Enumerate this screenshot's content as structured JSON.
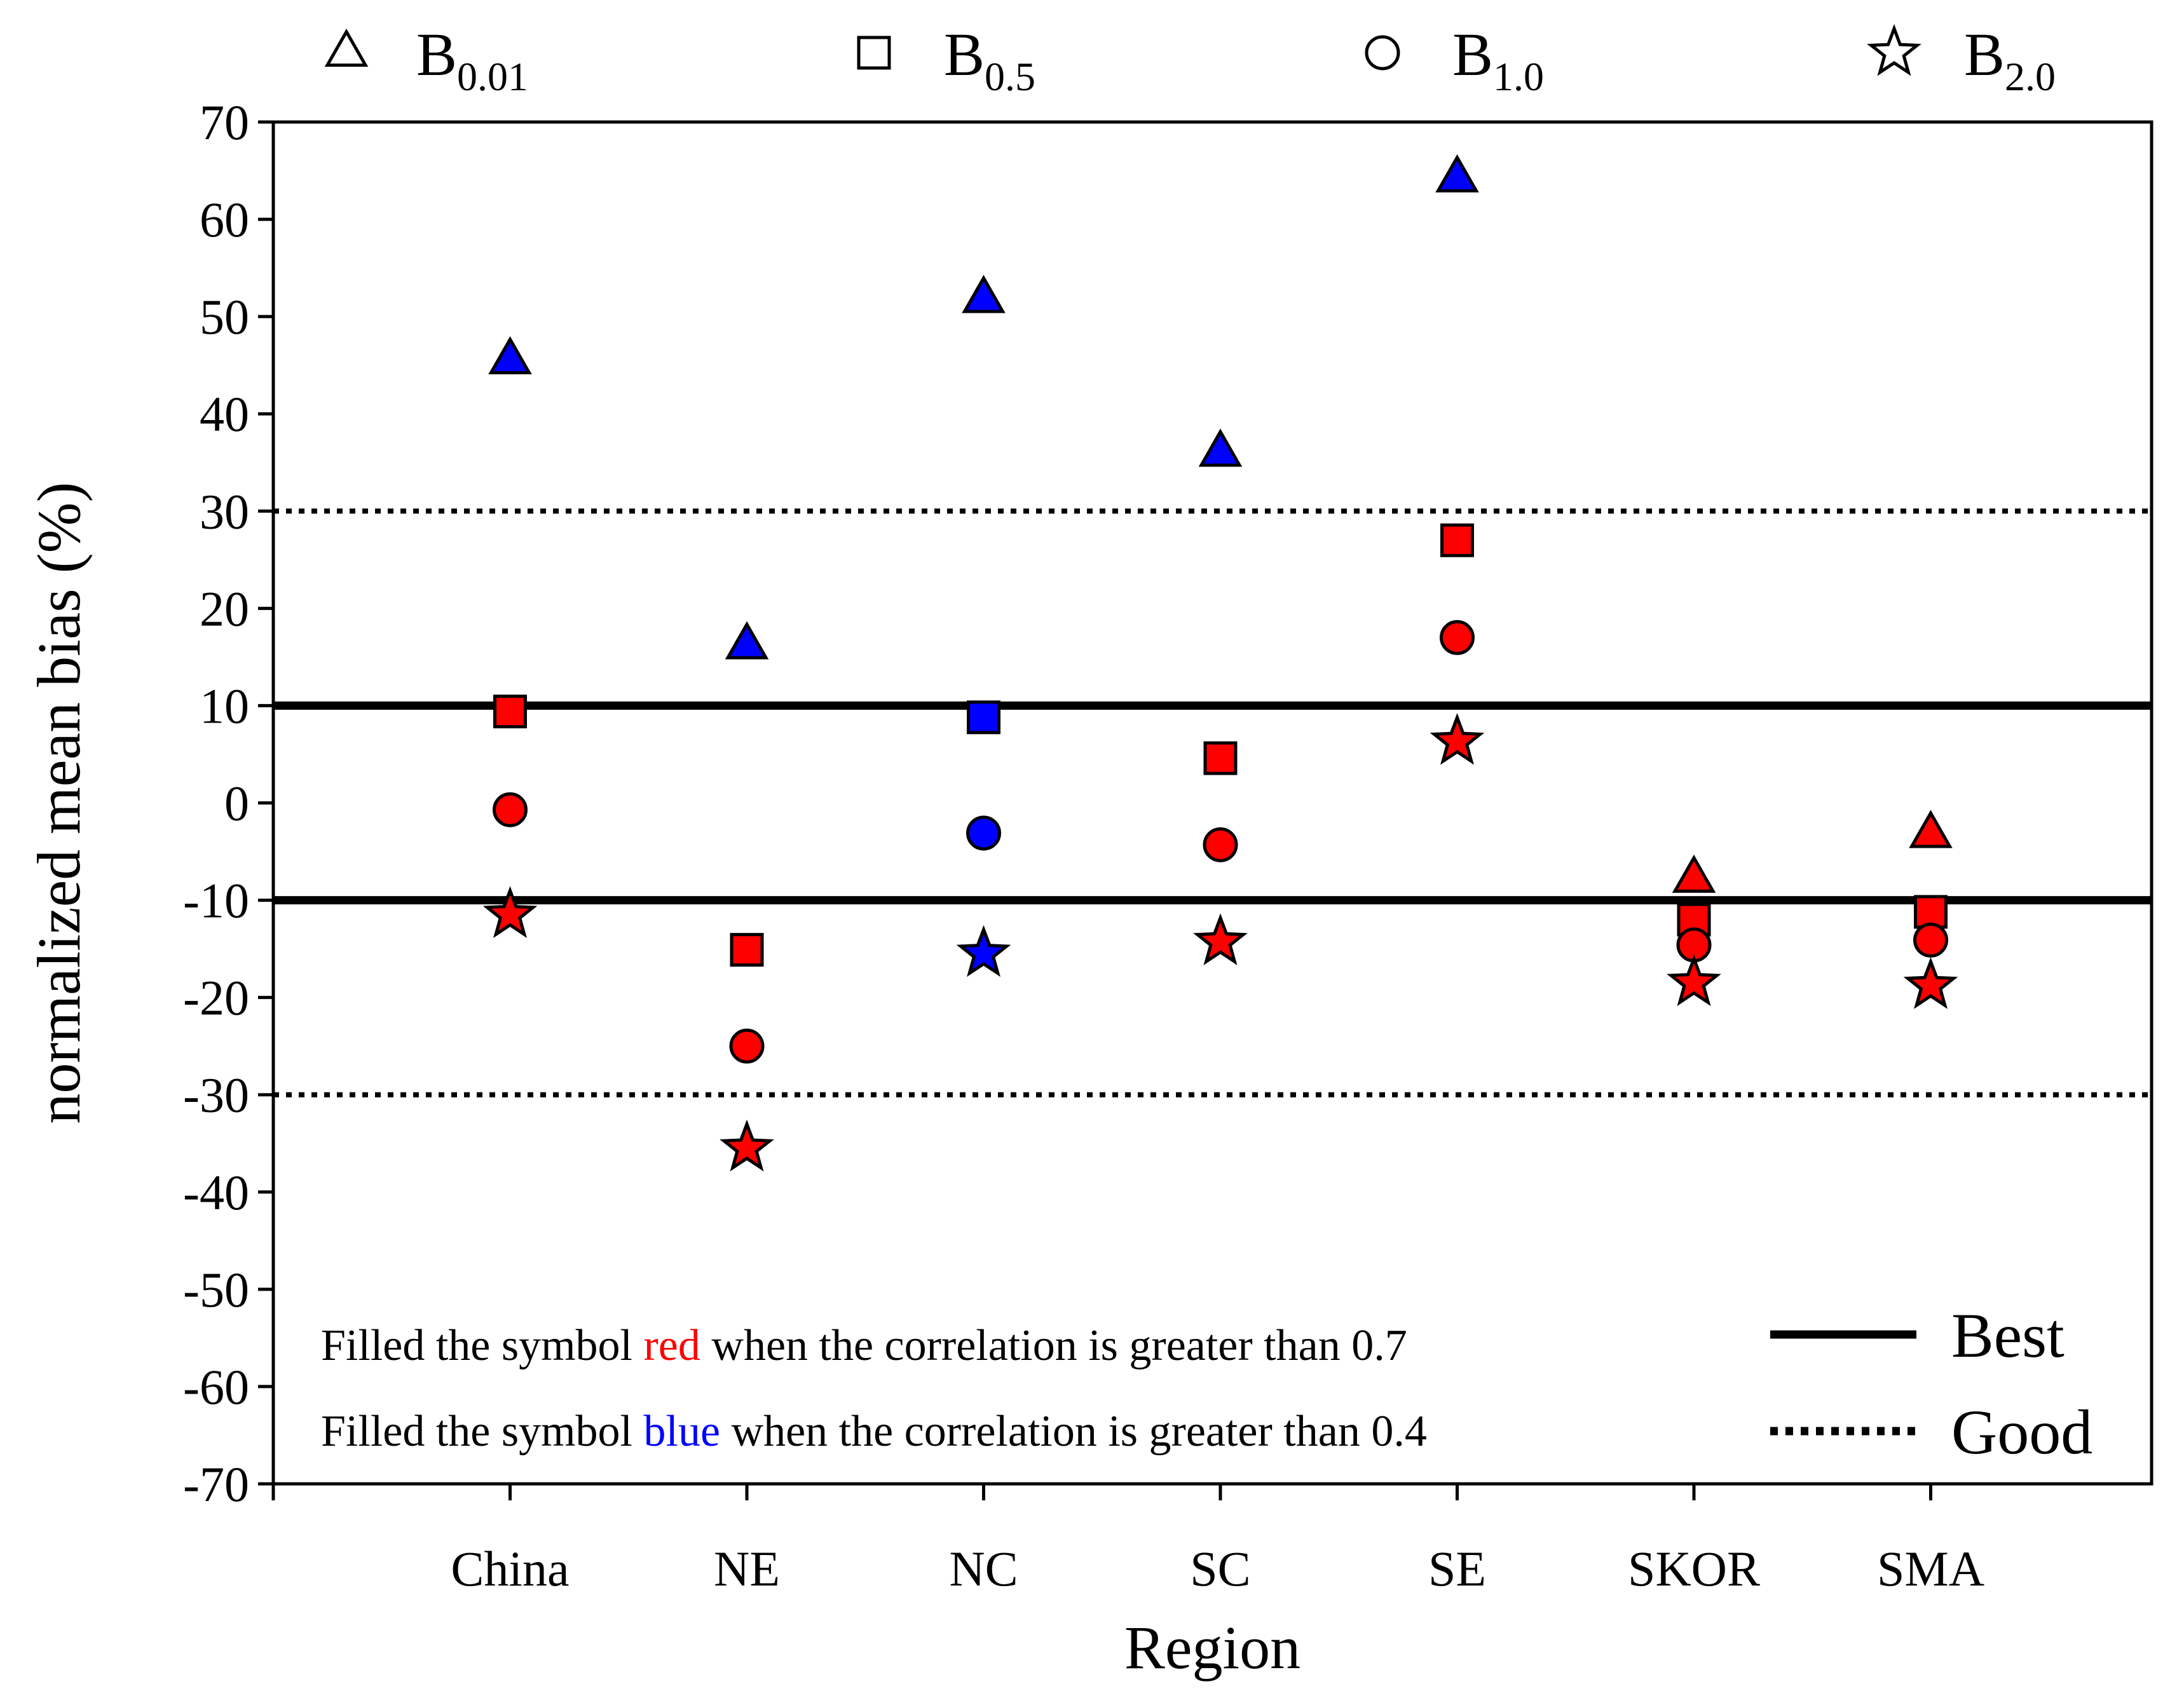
{
  "chart_data": {
    "type": "scatter",
    "xlabel": "Region",
    "ylabel": "normalized mean bias (%)",
    "categories": [
      "China",
      "NE",
      "NC",
      "SC",
      "SE",
      "SKOR",
      "SMA"
    ],
    "ylim": [
      -70,
      70
    ],
    "yticks": [
      "70",
      "60",
      "50",
      "40",
      "30",
      "20",
      "10",
      "0",
      "-10",
      "-20",
      "-30",
      "-40",
      "-50",
      "-60",
      "-70"
    ],
    "series": [
      {
        "name": "B0.01",
        "label_main": "B",
        "label_sub": "0.01",
        "marker": "triangle",
        "values": [
          45.5,
          16.2,
          51.8,
          36.0,
          64.2,
          -7.8,
          -3.2
        ],
        "fills": [
          "blue",
          "blue",
          "blue",
          "blue",
          "blue",
          "red",
          "red"
        ]
      },
      {
        "name": "B0.5",
        "label_main": "B",
        "label_sub": "0.5",
        "marker": "square",
        "values": [
          9.4,
          -15.1,
          8.8,
          4.6,
          27.0,
          -12.0,
          -11.2
        ],
        "fills": [
          "red",
          "red",
          "blue",
          "red",
          "red",
          "red",
          "red"
        ]
      },
      {
        "name": "B1.0",
        "label_main": "B",
        "label_sub": "1.0",
        "marker": "circle",
        "values": [
          -0.7,
          -25.0,
          -3.1,
          -4.3,
          17.0,
          -14.6,
          -14.1
        ],
        "fills": [
          "red",
          "red",
          "blue",
          "red",
          "red",
          "red",
          "red"
        ]
      },
      {
        "name": "B2.0",
        "label_main": "B",
        "label_sub": "2.0",
        "marker": "star",
        "values": [
          -11.5,
          -35.5,
          -15.5,
          -14.3,
          6.3,
          -18.5,
          -18.8
        ],
        "fills": [
          "red",
          "red",
          "blue",
          "red",
          "red",
          "red",
          "red"
        ]
      }
    ],
    "reference_lines": [
      {
        "y": 10,
        "style": "solid"
      },
      {
        "y": -10,
        "style": "solid"
      },
      {
        "y": 30,
        "style": "dotted"
      },
      {
        "y": -30,
        "style": "dotted"
      }
    ],
    "line_legend": [
      {
        "style": "solid",
        "label": "Best"
      },
      {
        "style": "dotted",
        "label": "Good"
      }
    ],
    "notes": [
      {
        "before": "Filled the symbol ",
        "word": "red",
        "after": " when the correlation is greater than 0.7",
        "color": "#ff0000"
      },
      {
        "before": "Filled the symbol ",
        "word": "blue",
        "after": " when the correlation is greater than 0.4",
        "color": "#0000ff"
      }
    ],
    "colors": {
      "red": "#ff0000",
      "blue": "#0000ff"
    },
    "grid": false,
    "legend_position": "top"
  }
}
